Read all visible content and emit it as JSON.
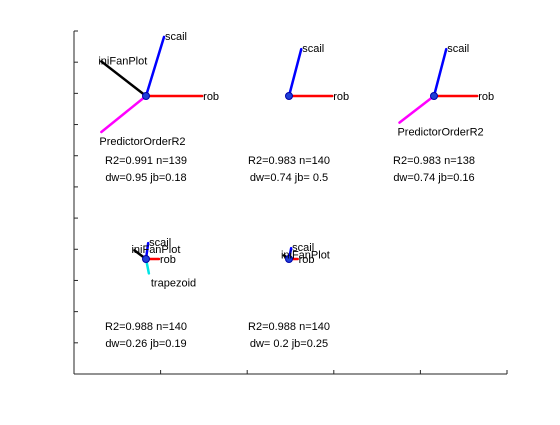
{
  "chart_data": {
    "type": "fan",
    "title": "",
    "xlabel": "",
    "ylabel": "",
    "grid": false,
    "axes": {
      "x_tick_count": 6,
      "y_tick_count": 12
    },
    "fans": [
      {
        "stats_line1": "R2=0.991 n=139",
        "stats_line2": "dw=0.95 jb=0.18",
        "spokes": [
          {
            "label": "scail",
            "dx": 0.25,
            "dy": 0.82,
            "color": "#0000ff"
          },
          {
            "label": "rob",
            "dx": 0.78,
            "dy": 0.0,
            "color": "#ff0000"
          },
          {
            "label": "iniFanPlot",
            "dx": -0.62,
            "dy": 0.48,
            "color": "#000000"
          },
          {
            "label": "PredictorOrderR2",
            "dx": -0.62,
            "dy": -0.5,
            "color": "#ff00ff"
          }
        ]
      },
      {
        "stats_line1": "R2=0.983 n=140",
        "stats_line2": "dw=0.74 jb= 0.5",
        "spokes": [
          {
            "label": "scail",
            "dx": 0.17,
            "dy": 0.65,
            "color": "#0000ff"
          },
          {
            "label": "rob",
            "dx": 0.6,
            "dy": 0.0,
            "color": "#ff0000"
          }
        ]
      },
      {
        "stats_line1": "R2=0.983 n=138",
        "stats_line2": "dw=0.74 jb=0.16",
        "spokes": [
          {
            "label": "scail",
            "dx": 0.17,
            "dy": 0.65,
            "color": "#0000ff"
          },
          {
            "label": "rob",
            "dx": 0.6,
            "dy": 0.0,
            "color": "#ff0000"
          },
          {
            "label": "PredictorOrderR2",
            "dx": -0.48,
            "dy": -0.37,
            "color": "#ff00ff"
          }
        ]
      },
      {
        "stats_line1": "R2=0.988 n=140",
        "stats_line2": "dw=0.26 jb=0.19",
        "spokes": [
          {
            "label": "scail",
            "dx": 0.03,
            "dy": 0.22,
            "color": "#0000ff"
          },
          {
            "label": "rob",
            "dx": 0.18,
            "dy": 0.0,
            "color": "#ff0000"
          },
          {
            "label": "iniFanPlot",
            "dx": -0.16,
            "dy": 0.12,
            "color": "#000000"
          },
          {
            "label": "trapezoid",
            "dx": 0.04,
            "dy": -0.2,
            "color": "#00e5e5"
          }
        ]
      },
      {
        "stats_line1": "R2=0.988 n=140",
        "stats_line2": "dw= 0.2 jb=0.25",
        "spokes": [
          {
            "label": "scail",
            "dx": 0.03,
            "dy": 0.15,
            "color": "#0000ff"
          },
          {
            "label": "rob",
            "dx": 0.12,
            "dy": 0.0,
            "color": "#ff0000"
          },
          {
            "label": "iniFanPlot",
            "dx": -0.07,
            "dy": 0.05,
            "color": "#000000"
          }
        ]
      }
    ]
  }
}
